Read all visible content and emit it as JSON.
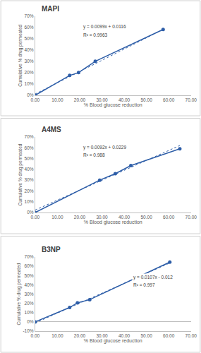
{
  "chart_data": [
    {
      "type": "line",
      "title": "MAPI",
      "xlabel": "% Blood glucose reduction",
      "ylabel": "Cumulative % drug permeated",
      "x": [
        0,
        15.5,
        19.5,
        27,
        57.5
      ],
      "values": [
        0,
        0.175,
        0.2,
        0.3,
        0.58
      ],
      "trendline": {
        "slope": 0.0099,
        "intercept": 0.0116
      },
      "annotations": [
        "y = 0.0099x + 0.0116",
        "R² = 0.9963"
      ],
      "xlim": [
        0,
        70
      ],
      "xticks": [
        {
          "value": 0,
          "label": "0.00"
        },
        {
          "value": 10,
          "label": "10.00"
        },
        {
          "value": 20,
          "label": "20.00"
        },
        {
          "value": 30,
          "label": "30.00"
        },
        {
          "value": 40,
          "label": "40.00"
        },
        {
          "value": 50,
          "label": "50.00"
        },
        {
          "value": 60,
          "label": "60.00"
        },
        {
          "value": 70,
          "label": "70.00"
        }
      ],
      "ylim": [
        0,
        0.7
      ],
      "yticks": [
        {
          "value": 0,
          "label": "0%"
        },
        {
          "value": 0.1,
          "label": "10%"
        },
        {
          "value": 0.2,
          "label": "20%"
        },
        {
          "value": 0.3,
          "label": "30%"
        },
        {
          "value": 0.4,
          "label": "40%"
        },
        {
          "value": 0.5,
          "label": "50%"
        },
        {
          "value": 0.6,
          "label": "60%"
        },
        {
          "value": 0.7,
          "label": "70%"
        }
      ],
      "grid": false,
      "color": "#2e5ea8",
      "marker": "circle",
      "line_style": "solid"
    },
    {
      "type": "line",
      "title": "A4MS",
      "xlabel": "% Blood glucose reduction",
      "ylabel": "Cumulative % drug permeated",
      "x": [
        0,
        29,
        36,
        43,
        65
      ],
      "values": [
        0,
        0.3,
        0.36,
        0.435,
        0.59
      ],
      "trendline": {
        "slope": 0.0092,
        "intercept": 0.0229
      },
      "annotations": [
        "y = 0.0092x + 0.0229",
        "R² = 0.988"
      ],
      "xlim": [
        0,
        70
      ],
      "xticks": [
        {
          "value": 0,
          "label": "0.00"
        },
        {
          "value": 10,
          "label": "10.00"
        },
        {
          "value": 20,
          "label": "20.00"
        },
        {
          "value": 30,
          "label": "30.00"
        },
        {
          "value": 40,
          "label": "40.00"
        },
        {
          "value": 50,
          "label": "50.00"
        },
        {
          "value": 60,
          "label": "60.00"
        },
        {
          "value": 70,
          "label": "70.00"
        }
      ],
      "ylim": [
        0,
        0.7
      ],
      "yticks": [
        {
          "value": 0,
          "label": "0%"
        },
        {
          "value": 0.1,
          "label": "10%"
        },
        {
          "value": 0.2,
          "label": "20%"
        },
        {
          "value": 0.3,
          "label": "30%"
        },
        {
          "value": 0.4,
          "label": "40%"
        },
        {
          "value": 0.5,
          "label": "50%"
        },
        {
          "value": 0.6,
          "label": "60%"
        },
        {
          "value": 0.7,
          "label": "70%"
        }
      ],
      "grid": false,
      "color": "#2e5ea8",
      "marker": "circle",
      "line_style": "solid"
    },
    {
      "type": "line",
      "title": "B3NP",
      "xlabel": "% Blood glucose reduction",
      "ylabel": "Cumulative % drug permeated",
      "x": [
        0,
        15.5,
        19,
        24.5,
        60.5
      ],
      "values": [
        0,
        0.155,
        0.205,
        0.24,
        0.645
      ],
      "trendline": {
        "slope": 0.0107,
        "intercept": -0.012
      },
      "annotations": [
        "y = 0.0107x - 0.012",
        "R² = 0.997"
      ],
      "xlim": [
        0,
        70
      ],
      "xticks": [
        {
          "value": 0,
          "label": "0.00"
        },
        {
          "value": 10,
          "label": "10.00"
        },
        {
          "value": 20,
          "label": "20.00"
        },
        {
          "value": 30,
          "label": "30.00"
        },
        {
          "value": 40,
          "label": "40.00"
        },
        {
          "value": 50,
          "label": "50.00"
        },
        {
          "value": 60,
          "label": "60.00"
        },
        {
          "value": 70,
          "label": "70.00"
        }
      ],
      "ylim": [
        -0.1,
        0.7
      ],
      "yticks": [
        {
          "value": -0.1,
          "label": "-10%"
        },
        {
          "value": 0,
          "label": "0%"
        },
        {
          "value": 0.1,
          "label": "10%"
        },
        {
          "value": 0.2,
          "label": "20%"
        },
        {
          "value": 0.3,
          "label": "30%"
        },
        {
          "value": 0.4,
          "label": "40%"
        },
        {
          "value": 0.5,
          "label": "50%"
        },
        {
          "value": 0.6,
          "label": "60%"
        },
        {
          "value": 0.7,
          "label": "70%"
        }
      ],
      "grid": false,
      "color": "#2e5ea8",
      "marker": "circle",
      "line_style": "solid"
    }
  ]
}
